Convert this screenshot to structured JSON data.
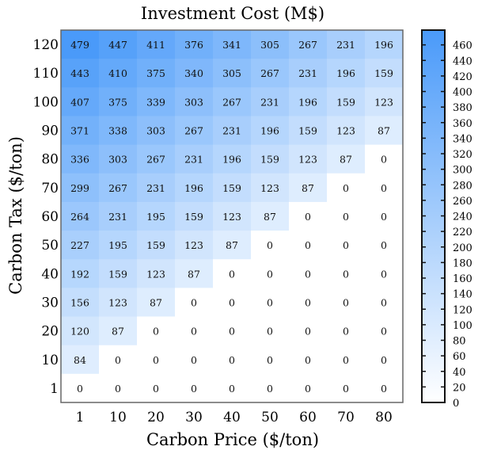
{
  "chart_data": {
    "type": "heatmap",
    "title": "Investment Cost (M$)",
    "xlabel": "Carbon Price ($/ton)",
    "ylabel": "Carbon Tax ($/ton)",
    "x_categories": [
      "1",
      "10",
      "20",
      "30",
      "40",
      "50",
      "60",
      "70",
      "80"
    ],
    "y_categories": [
      "120",
      "110",
      "100",
      "90",
      "80",
      "70",
      "60",
      "50",
      "40",
      "30",
      "20",
      "10",
      "1"
    ],
    "values": [
      [
        479,
        447,
        411,
        376,
        341,
        305,
        267,
        231,
        196
      ],
      [
        443,
        410,
        375,
        340,
        305,
        267,
        231,
        196,
        159
      ],
      [
        407,
        375,
        339,
        303,
        267,
        231,
        196,
        159,
        123
      ],
      [
        371,
        338,
        303,
        267,
        231,
        196,
        159,
        123,
        87
      ],
      [
        336,
        303,
        267,
        231,
        196,
        159,
        123,
        87,
        0
      ],
      [
        299,
        267,
        231,
        196,
        159,
        123,
        87,
        0,
        0
      ],
      [
        264,
        231,
        195,
        159,
        123,
        87,
        0,
        0,
        0
      ],
      [
        227,
        195,
        159,
        123,
        87,
        0,
        0,
        0,
        0
      ],
      [
        192,
        159,
        123,
        87,
        0,
        0,
        0,
        0,
        0
      ],
      [
        156,
        123,
        87,
        0,
        0,
        0,
        0,
        0,
        0
      ],
      [
        120,
        87,
        0,
        0,
        0,
        0,
        0,
        0,
        0
      ],
      [
        84,
        0,
        0,
        0,
        0,
        0,
        0,
        0,
        0
      ],
      [
        0,
        0,
        0,
        0,
        0,
        0,
        0,
        0,
        0
      ]
    ],
    "colorbar": {
      "range": [
        0,
        479
      ],
      "ticks": [
        0,
        20,
        40,
        60,
        80,
        100,
        120,
        140,
        160,
        180,
        200,
        220,
        240,
        260,
        280,
        300,
        320,
        340,
        360,
        380,
        400,
        420,
        440,
        460
      ],
      "color_low": "#ffffff",
      "color_high": "#4a9af9"
    }
  }
}
